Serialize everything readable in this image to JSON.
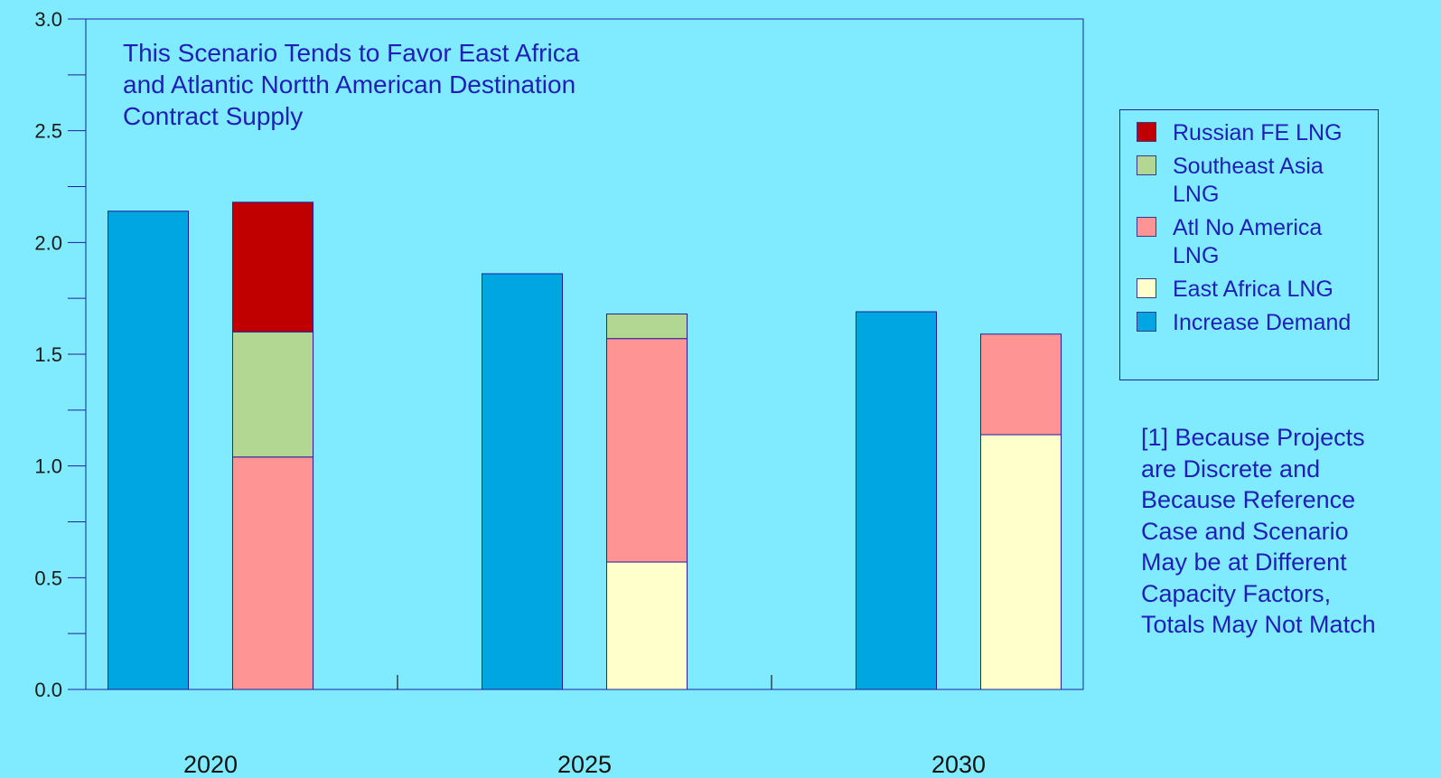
{
  "chart_data": {
    "type": "bar",
    "stacked": true,
    "categories": [
      "2020",
      "2025",
      "2030"
    ],
    "ylim": [
      0,
      3.0
    ],
    "yticks": [
      "0.0",
      "0.5",
      "1.0",
      "1.5",
      "2.0",
      "2.5",
      "3.0"
    ],
    "annotation_lines": [
      "This Scenario Tends to Favor East Africa",
      "and Atlantic Nortth American Destination",
      "Contract Supply"
    ],
    "increase_demand": [
      2.14,
      1.86,
      1.69
    ],
    "supply_stacks": [
      {
        "name": "East Africa  LNG",
        "values": [
          0.0,
          0.57,
          1.14
        ]
      },
      {
        "name": "Atl No America LNG",
        "values": [
          1.04,
          1.0,
          0.45
        ]
      },
      {
        "name": "Southeast Asia LNG",
        "values": [
          0.56,
          0.11,
          0.0
        ]
      },
      {
        "name": "Russian FE LNG",
        "values": [
          0.58,
          0.0,
          0.0
        ]
      }
    ],
    "colors": {
      "increase_demand": "#00A6E2",
      "east_africa": "#FFFFCC",
      "atl_no_america": "#FF9494",
      "southeast_asia": "#B2D793",
      "russian_fe": "#C00000",
      "axis": "#1f1fa0",
      "text": "#1f1fb8"
    }
  },
  "legend": {
    "items": [
      {
        "label": "Russian FE LNG",
        "color": "#C00000"
      },
      {
        "label": "Southeast Asia LNG",
        "color": "#B2D793"
      },
      {
        "label": "Atl No America LNG",
        "color": "#FF9494"
      },
      {
        "label": "East Africa  LNG",
        "color": "#FFFFCC"
      },
      {
        "label": "Increase Demand",
        "color": "#00A6E2"
      }
    ]
  },
  "footnote": {
    "lines": [
      "[1] Because Projects",
      "are Discrete and",
      "Because Reference",
      "Case and Scenario",
      "May be at Different",
      "Capacity Factors,",
      "Totals May Not Match"
    ]
  }
}
